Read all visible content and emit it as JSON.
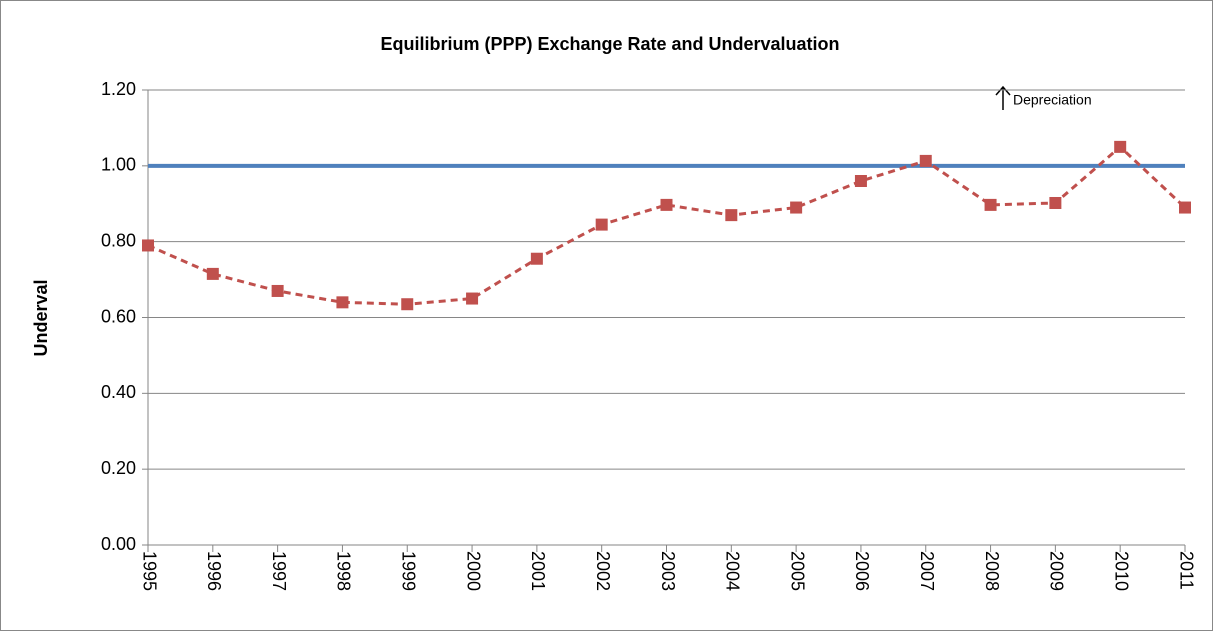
{
  "chart_data": {
    "type": "line",
    "title": "Equilibrium (PPP) Exchange Rate and Undervaluation",
    "y_label": "Underval",
    "annotation": "Depreciation",
    "categories": [
      "1995",
      "1996",
      "1997",
      "1998",
      "1999",
      "2000",
      "2001",
      "2002",
      "2003",
      "2004",
      "2005",
      "2006",
      "2007",
      "2008",
      "2009",
      "2010",
      "2011"
    ],
    "series": [
      {
        "color": "#4f81bd",
        "dash": false,
        "marker": false,
        "values": [
          1,
          1,
          1,
          1,
          1,
          1,
          1,
          1,
          1,
          1,
          1,
          1,
          1,
          1,
          1,
          1,
          1
        ]
      },
      {
        "color": "#c0504d",
        "dash": true,
        "marker": true,
        "values": [
          0.79,
          0.715,
          0.67,
          0.64,
          0.635,
          0.65,
          0.755,
          0.845,
          0.897,
          0.87,
          0.89,
          0.96,
          1.013,
          0.897,
          0.902,
          1.05,
          0.89
        ]
      }
    ],
    "ylim": [
      0,
      1.2
    ],
    "yticks": [
      {
        "value": 0,
        "label": "0.00"
      },
      {
        "value": 0.2,
        "label": "0.20"
      },
      {
        "value": 0.4,
        "label": "0.40"
      },
      {
        "value": 0.6,
        "label": "0.60"
      },
      {
        "value": 0.8,
        "label": "0.80"
      },
      {
        "value": 1,
        "label": "1.00"
      },
      {
        "value": 1.2,
        "label": "1.20"
      }
    ],
    "grid": true
  }
}
